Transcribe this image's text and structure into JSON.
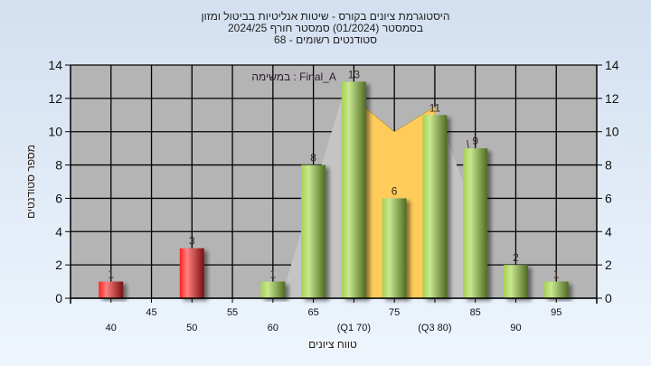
{
  "chart_data": {
    "type": "bar",
    "title": [
      "היסטוגרמת ציונים בקורס - שיטות אנליטיות בביטול ומזון",
      "בסמסטר  (01/2024)  סמסטר חורף 2024/25",
      "סטודנטים רשומים - 68"
    ],
    "annotation": "במשימה : Final_A",
    "xlabel": "טווח ציונים",
    "ylabel": "מספר סטודנטים",
    "xlim": [
      35,
      100
    ],
    "ylim": [
      0,
      14
    ],
    "yticks": [
      0,
      2,
      4,
      6,
      8,
      10,
      12,
      14
    ],
    "xticks_upper": [
      "45",
      "55",
      "65",
      "75",
      "85",
      "95"
    ],
    "xticks_upper_values": [
      45,
      55,
      65,
      75,
      85,
      95
    ],
    "xticks_lower": [
      "40",
      "50",
      "60",
      "(Q1 70)",
      "(Q3 80)",
      "90"
    ],
    "xticks_lower_values": [
      40,
      50,
      60,
      70,
      80,
      90
    ],
    "grid": true,
    "bars": [
      {
        "x": 40,
        "value": 1,
        "color": "red"
      },
      {
        "x": 50,
        "value": 3,
        "color": "red"
      },
      {
        "x": 60,
        "value": 1,
        "color": "green"
      },
      {
        "x": 65,
        "value": 8,
        "color": "green"
      },
      {
        "x": 70,
        "value": 13,
        "color": "green"
      },
      {
        "x": 75,
        "value": 6,
        "color": "green"
      },
      {
        "x": 80,
        "value": 11,
        "color": "green"
      },
      {
        "x": 85,
        "value": 9,
        "color": "green"
      },
      {
        "x": 90,
        "value": 2,
        "color": "green"
      },
      {
        "x": 95,
        "value": 1,
        "color": "green"
      }
    ],
    "iqr_area": [
      [
        70,
        12
      ],
      [
        75,
        10
      ],
      [
        80,
        11.5
      ]
    ],
    "colors": {
      "plot_bg": "#b4b4b4",
      "iqr_area": "#ffcc5c",
      "red": "#e8262c",
      "green": "#9cc24a"
    }
  }
}
